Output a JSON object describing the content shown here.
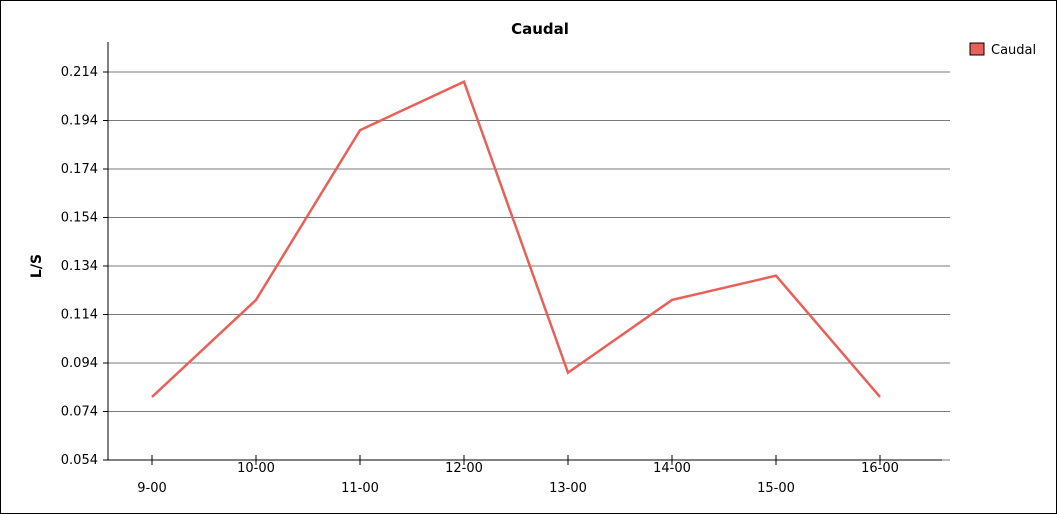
{
  "chart_data": {
    "type": "line",
    "title": "Caudal",
    "xlabel": "",
    "ylabel": "L/S",
    "categories": [
      "9-00",
      "10-00",
      "11-00",
      "12-00",
      "13-00",
      "14-00",
      "15-00",
      "16-00"
    ],
    "series": [
      {
        "name": "Caudal",
        "color": "#e8605a",
        "values": [
          0.08,
          0.12,
          0.19,
          0.21,
          0.09,
          0.12,
          0.13,
          0.08
        ]
      }
    ],
    "yticks": [
      "0.054",
      "0.074",
      "0.094",
      "0.114",
      "0.134",
      "0.154",
      "0.174",
      "0.194",
      "0.214"
    ],
    "ylim": [
      0.054,
      0.214
    ],
    "grid": true,
    "legend_position": "top-right"
  }
}
